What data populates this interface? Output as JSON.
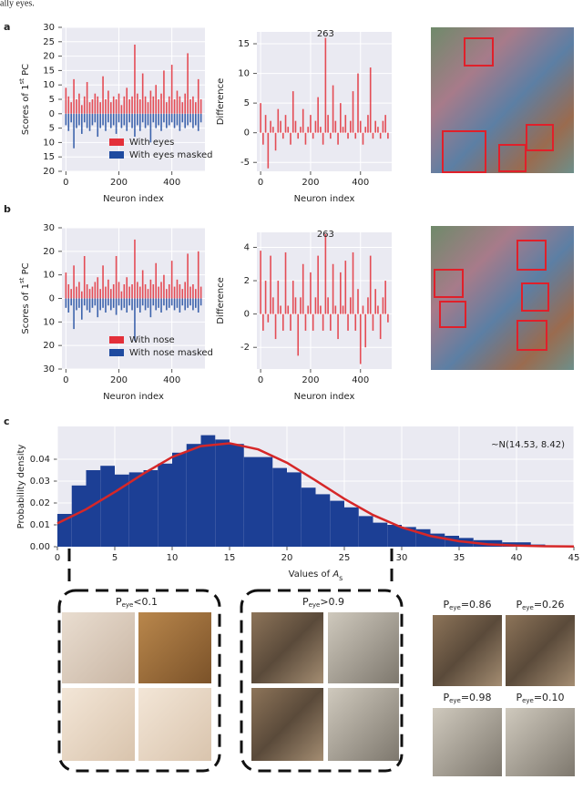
{
  "header": "ally eyes.",
  "panel_labels": [
    "a",
    "b",
    "c"
  ],
  "captions": [
    {
      "text": "P",
      "sub": "eye",
      "value": "<0.1"
    },
    {
      "text": "P",
      "sub": "eye",
      "value": ">0.9"
    },
    {
      "text": "P",
      "sub": "eye",
      "value": "=0.86"
    },
    {
      "text": "P",
      "sub": "eye",
      "value": "=0.26"
    },
    {
      "text": "P",
      "sub": "eye",
      "value": "=0.98"
    },
    {
      "text": "P",
      "sub": "eye",
      "value": "=0.10"
    }
  ],
  "chart_data": [
    {
      "type": "bar",
      "y_label": {
        "text": "Scores of 1",
        "sup": "st",
        "rest": " PC"
      },
      "x_label": "Neuron index",
      "x": [
        0,
        10,
        20,
        30,
        40,
        50,
        60,
        70,
        80,
        90,
        100,
        110,
        120,
        130,
        140,
        150,
        160,
        170,
        180,
        190,
        200,
        210,
        220,
        230,
        240,
        250,
        260,
        270,
        280,
        290,
        300,
        310,
        320,
        330,
        340,
        350,
        360,
        370,
        380,
        390,
        400,
        410,
        420,
        430,
        440,
        450,
        460,
        470,
        480,
        490,
        500,
        510
      ],
      "series": [
        {
          "name": "With eyes",
          "color": "#e3303a",
          "values": [
            9,
            6,
            4,
            12,
            5,
            7,
            3,
            6,
            11,
            4,
            5,
            7,
            6,
            4,
            13,
            5,
            8,
            4,
            6,
            5,
            7,
            3,
            6,
            9,
            5,
            6,
            24,
            7,
            5,
            14,
            6,
            4,
            8,
            6,
            10,
            5,
            7,
            15,
            4,
            6,
            17,
            5,
            8,
            6,
            4,
            7,
            21,
            5,
            6,
            4,
            12,
            5
          ]
        },
        {
          "name": "With eyes masked",
          "color": "#1f4ba0",
          "values": [
            -4,
            -6,
            -3,
            -12,
            -5,
            -4,
            -7,
            -3,
            -5,
            -6,
            -4,
            -3,
            -8,
            -5,
            -4,
            -6,
            -3,
            -5,
            -4,
            -7,
            -3,
            -5,
            -4,
            -6,
            -3,
            -5,
            -8,
            -4,
            -6,
            -3,
            -5,
            -4,
            -10,
            -3,
            -5,
            -4,
            -6,
            -3,
            -5,
            -4,
            -3,
            -5,
            -4,
            -6,
            -3,
            -5,
            -4,
            -3,
            -5,
            -4,
            -6,
            -3
          ]
        }
      ],
      "xlim": [
        -15,
        525
      ],
      "xticks": [
        0,
        200,
        400
      ],
      "ylim": [
        -20,
        30
      ],
      "yticks": [
        30,
        25,
        20,
        15,
        10,
        5,
        0,
        {
          "value": -5,
          "label": "5"
        },
        {
          "value": -10,
          "label": "10"
        },
        {
          "value": -15,
          "label": "15"
        },
        {
          "value": -20,
          "label": "20"
        }
      ],
      "grid": true,
      "legend": "lower right"
    },
    {
      "type": "bar",
      "y_label": "Difference",
      "x_label": "Neuron index",
      "annotation": "263",
      "color": "#e3303a",
      "x": [
        0,
        10,
        20,
        30,
        40,
        50,
        60,
        70,
        80,
        90,
        100,
        110,
        120,
        130,
        140,
        150,
        160,
        170,
        180,
        190,
        200,
        210,
        220,
        230,
        240,
        250,
        260,
        270,
        280,
        290,
        300,
        310,
        320,
        330,
        340,
        350,
        360,
        370,
        380,
        390,
        400,
        410,
        420,
        430,
        440,
        450,
        460,
        470,
        480,
        490,
        500,
        510
      ],
      "values": [
        5,
        -2,
        3,
        -6,
        2,
        1,
        -3,
        4,
        2,
        -1,
        3,
        1,
        -2,
        7,
        2,
        -1,
        1,
        4,
        -2,
        1,
        3,
        -1,
        2,
        6,
        1,
        -2,
        16,
        3,
        -1,
        8,
        2,
        -2,
        5,
        1,
        3,
        -1,
        2,
        7,
        -1,
        10,
        2,
        -2,
        1,
        3,
        11,
        -1,
        2,
        1,
        -1,
        2,
        3,
        -1
      ],
      "xlim": [
        -15,
        525
      ],
      "xticks": [
        0,
        200,
        400
      ],
      "ylim": [
        -6.5,
        17
      ],
      "yticks": [
        -5,
        0,
        5,
        10,
        15
      ],
      "grid": true
    },
    {
      "type": "bar",
      "y_label": {
        "text": "Scores of 1",
        "sup": "st",
        "rest": " PC"
      },
      "x_label": "Neuron index",
      "x": [
        0,
        10,
        20,
        30,
        40,
        50,
        60,
        70,
        80,
        90,
        100,
        110,
        120,
        130,
        140,
        150,
        160,
        170,
        180,
        190,
        200,
        210,
        220,
        230,
        240,
        250,
        260,
        270,
        280,
        290,
        300,
        310,
        320,
        330,
        340,
        350,
        360,
        370,
        380,
        390,
        400,
        410,
        420,
        430,
        440,
        450,
        460,
        470,
        480,
        490,
        500,
        510
      ],
      "series": [
        {
          "name": "With nose",
          "color": "#e3303a",
          "values": [
            11,
            6,
            4,
            14,
            5,
            7,
            3,
            18,
            6,
            4,
            5,
            7,
            9,
            4,
            14,
            5,
            8,
            4,
            6,
            18,
            7,
            3,
            6,
            9,
            5,
            6,
            25,
            7,
            5,
            12,
            6,
            4,
            8,
            6,
            15,
            5,
            7,
            10,
            4,
            6,
            16,
            5,
            8,
            6,
            4,
            7,
            19,
            5,
            6,
            4,
            20,
            5
          ]
        },
        {
          "name": "With nose masked",
          "color": "#1f4ba0",
          "values": [
            -4,
            -6,
            -3,
            -13,
            -5,
            -4,
            -9,
            -3,
            -5,
            -6,
            -4,
            -3,
            -8,
            -5,
            -4,
            -6,
            -3,
            -5,
            -4,
            -7,
            -3,
            -5,
            -4,
            -6,
            -3,
            -5,
            -18,
            -4,
            -6,
            -3,
            -5,
            -4,
            -8,
            -3,
            -5,
            -4,
            -6,
            -3,
            -5,
            -4,
            -3,
            -5,
            -4,
            -6,
            -3,
            -5,
            -4,
            -3,
            -5,
            -4,
            -6,
            -3
          ]
        }
      ],
      "xlim": [
        -15,
        525
      ],
      "xticks": [
        0,
        200,
        400
      ],
      "ylim": [
        -30,
        30
      ],
      "yticks": [
        30,
        20,
        10,
        0,
        {
          "value": -10,
          "label": "10"
        },
        {
          "value": -20,
          "label": "20"
        },
        {
          "value": -30,
          "label": "30"
        }
      ],
      "grid": true,
      "legend": "lower right"
    },
    {
      "type": "bar",
      "y_label": "Difference",
      "x_label": "Neuron index",
      "annotation": "263",
      "color": "#e3303a",
      "x": [
        0,
        10,
        20,
        30,
        40,
        50,
        60,
        70,
        80,
        90,
        100,
        110,
        120,
        130,
        140,
        150,
        160,
        170,
        180,
        190,
        200,
        210,
        220,
        230,
        240,
        250,
        260,
        270,
        280,
        290,
        300,
        310,
        320,
        330,
        340,
        350,
        360,
        370,
        380,
        390,
        400,
        410,
        420,
        430,
        440,
        450,
        460,
        470,
        480,
        490,
        500,
        510
      ],
      "values": [
        3.8,
        -1,
        2,
        -0.5,
        3.5,
        1,
        -1.5,
        2,
        0.5,
        -1,
        3.7,
        0.5,
        -1,
        2,
        1,
        -2.5,
        1,
        3,
        -1,
        0.5,
        2.5,
        -1,
        1,
        3.5,
        0.5,
        -1,
        4.8,
        1,
        -1,
        3,
        0.5,
        -1.5,
        2.5,
        0.5,
        3.2,
        -1,
        1,
        3.7,
        -1,
        1.5,
        -3,
        0.5,
        -2,
        1,
        3.5,
        -1,
        1.5,
        0.5,
        -1.5,
        1,
        2,
        -0.5
      ],
      "xlim": [
        -15,
        525
      ],
      "xticks": [
        0,
        200,
        400
      ],
      "ylim": [
        -3.3,
        4.9
      ],
      "yticks": [
        -2,
        0,
        2,
        4
      ],
      "grid": true
    },
    {
      "type": "histogram",
      "y_label": "Probability density",
      "x_label": {
        "text": "Values of ",
        "var": "A",
        "sub": "s"
      },
      "annotation": "~N(14.53, 8.42)",
      "color": "#1c3f95",
      "bins": [
        0,
        1.25,
        2.5,
        3.75,
        5,
        6.25,
        7.5,
        8.75,
        10,
        11.25,
        12.5,
        13.75,
        15,
        16.25,
        17.5,
        18.75,
        20,
        21.25,
        22.5,
        23.75,
        25,
        26.25,
        27.5,
        28.75,
        30,
        31.25,
        32.5,
        33.75,
        35,
        36.25,
        37.5,
        38.75,
        40,
        41.25,
        42.5
      ],
      "values": [
        0.015,
        0.028,
        0.035,
        0.037,
        0.033,
        0.034,
        0.035,
        0.038,
        0.043,
        0.047,
        0.051,
        0.049,
        0.047,
        0.041,
        0.041,
        0.036,
        0.034,
        0.027,
        0.024,
        0.021,
        0.018,
        0.014,
        0.011,
        0.01,
        0.009,
        0.008,
        0.006,
        0.005,
        0.004,
        0.003,
        0.003,
        0.002,
        0.002,
        0.001
      ],
      "line": {
        "color": "#d62728",
        "x": [
          0,
          2.5,
          5,
          7.5,
          10,
          12.5,
          15,
          17.5,
          20,
          22.5,
          25,
          27.5,
          30,
          32.5,
          35,
          37.5,
          40,
          42.5,
          45
        ],
        "values": [
          0.0107,
          0.0171,
          0.025,
          0.0334,
          0.041,
          0.046,
          0.0473,
          0.0445,
          0.0384,
          0.0303,
          0.0219,
          0.0145,
          0.0088,
          0.0049,
          0.0025,
          0.0011,
          0.0005,
          0.0002,
          0.0001
        ]
      },
      "xlim": [
        0,
        45
      ],
      "xticks": [
        0,
        5,
        10,
        15,
        20,
        25,
        30,
        35,
        40,
        45
      ],
      "ylim": [
        0,
        0.055
      ],
      "yticks": [
        {
          "value": 0,
          "label": "0.00"
        },
        {
          "value": 0.01,
          "label": "0.01"
        },
        {
          "value": 0.02,
          "label": "0.02"
        },
        {
          "value": 0.03,
          "label": "0.03"
        },
        {
          "value": 0.04,
          "label": "0.04"
        }
      ],
      "grid": true
    }
  ]
}
